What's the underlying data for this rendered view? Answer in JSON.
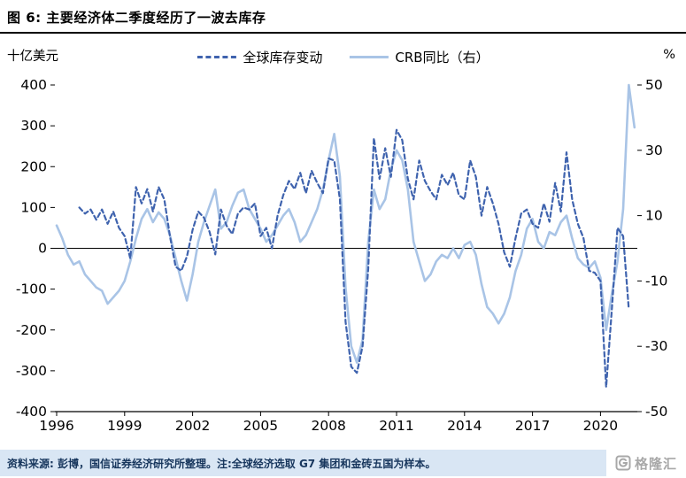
{
  "header": {
    "title": "图 6:  主要经济体二季度经历了一波去库存"
  },
  "chart": {
    "left_axis_unit": "十亿美元",
    "right_axis_unit": "%",
    "legend": [
      {
        "label": "全球库存变动",
        "color": "#3f63ae",
        "style": "dashed"
      },
      {
        "label": "CRB同比（右）",
        "color": "#a9c4e6",
        "style": "solid"
      }
    ]
  },
  "chart_data": {
    "type": "line",
    "title": "主要经济体二季度经历了一波去库存",
    "grid": false,
    "legend_position": "top",
    "x_range": [
      1996,
      2021.5
    ],
    "x_ticks": [
      1996,
      1999,
      2002,
      2005,
      2008,
      2011,
      2014,
      2017,
      2020
    ],
    "y_left": {
      "label": "十亿美元",
      "range": [
        -400,
        400
      ],
      "ticks": [
        400,
        300,
        200,
        100,
        0,
        -100,
        -200,
        -300,
        -400
      ]
    },
    "y_right": {
      "label": "%",
      "range": [
        -50,
        50
      ],
      "ticks": [
        50,
        30,
        10,
        -10,
        -30,
        -50
      ]
    },
    "series": [
      {
        "key": "crb_yoy",
        "name": "CRB同比（右）",
        "axis": "right",
        "style": "solid",
        "color": "#a9c4e6",
        "x_start": 1996.0,
        "x_step": 0.25,
        "values": [
          7,
          3,
          -2,
          -5,
          -4,
          -8,
          -10,
          -12,
          -13,
          -17,
          -15,
          -13,
          -10,
          -4,
          3,
          9,
          12,
          8,
          11,
          9,
          4,
          -3,
          -10,
          -16,
          -8,
          2,
          8,
          13,
          18,
          6,
          8,
          13,
          17,
          18,
          12,
          9,
          6,
          2,
          4,
          7,
          10,
          12,
          8,
          2,
          4,
          8,
          12,
          18,
          27,
          35,
          22,
          -12,
          -30,
          -35,
          -28,
          2,
          18,
          12,
          15,
          24,
          30,
          27,
          18,
          2,
          -4,
          -10,
          -8,
          -4,
          -2,
          -3,
          0,
          -3,
          1,
          2,
          -2,
          -11,
          -18,
          -20,
          -23,
          -20,
          -15,
          -7,
          -2,
          6,
          9,
          2,
          0,
          5,
          4,
          8,
          10,
          3,
          -3,
          -5,
          -6,
          -4,
          -9,
          -25,
          -14,
          -4,
          12,
          50,
          37
        ]
      },
      {
        "key": "inventory_change",
        "name": "全球库存变动",
        "axis": "left",
        "style": "dashed",
        "color": "#3f63ae",
        "x_start": 1997.0,
        "x_step": 0.25,
        "values": [
          100,
          85,
          95,
          70,
          95,
          60,
          90,
          50,
          30,
          -25,
          150,
          110,
          145,
          90,
          150,
          120,
          30,
          -45,
          -55,
          -20,
          45,
          90,
          75,
          40,
          -15,
          95,
          55,
          35,
          85,
          100,
          95,
          110,
          30,
          50,
          0,
          80,
          130,
          165,
          145,
          185,
          135,
          190,
          160,
          135,
          220,
          215,
          120,
          -180,
          -290,
          -305,
          -240,
          -50,
          270,
          170,
          245,
          175,
          290,
          265,
          170,
          120,
          215,
          165,
          140,
          120,
          180,
          155,
          185,
          130,
          120,
          215,
          175,
          80,
          150,
          110,
          60,
          -10,
          -45,
          25,
          85,
          95,
          60,
          50,
          110,
          65,
          160,
          90,
          235,
          120,
          60,
          25,
          -55,
          -60,
          -80,
          -340,
          -150,
          50,
          30,
          -150
        ]
      }
    ]
  },
  "footer": {
    "source_note": "资料来源: 彭博，国信证券经济研究所整理。注:全球经济选取 G7 集团和金砖五国为样本。",
    "logo_text": "格隆汇"
  }
}
